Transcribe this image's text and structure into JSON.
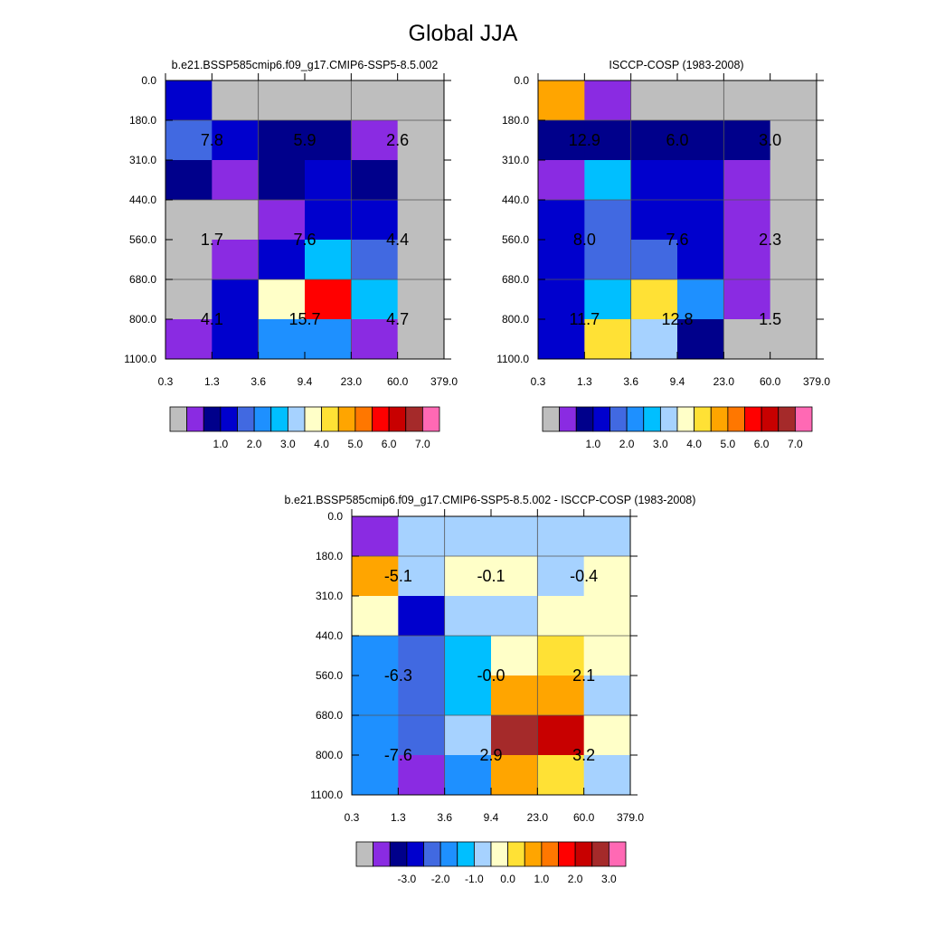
{
  "main_title": "Global JJA",
  "palettes": {
    "abs": [
      "#bebebe",
      "#8a2be2",
      "#00008b",
      "#0000cd",
      "#4169e1",
      "#1e90ff",
      "#00bfff",
      "#a6d2ff",
      "#ffffc8",
      "#ffe135",
      "#ffa500",
      "#ff7700",
      "#ff0000",
      "#c80000",
      "#a52a2a",
      "#ff69b4"
    ],
    "diff": [
      "#bebebe",
      "#8a2be2",
      "#00008b",
      "#0000cd",
      "#4169e1",
      "#1e90ff",
      "#00bfff",
      "#a6d2ff",
      "#ffffc8",
      "#ffe135",
      "#ffa500",
      "#ff7700",
      "#ff0000",
      "#c80000",
      "#a52a2a",
      "#ff69b4"
    ]
  },
  "chart_data": [
    {
      "type": "heatmap",
      "title": "b.e21.BSSP585cmip6.f09_g17.CMIP6-SSP5-8.5.002",
      "x_ticks": [
        "0.3",
        "1.3",
        "3.6",
        "9.4",
        "23.0",
        "60.0",
        "379.0"
      ],
      "y_ticks": [
        "0.0",
        "180.0",
        "310.0",
        "440.0",
        "560.0",
        "680.0",
        "800.0",
        "1100.0"
      ],
      "cell_colors": [
        [
          3,
          0,
          0,
          0,
          0,
          0
        ],
        [
          4,
          3,
          2,
          2,
          1,
          0
        ],
        [
          2,
          1,
          2,
          3,
          2,
          0
        ],
        [
          0,
          0,
          1,
          3,
          3,
          0
        ],
        [
          0,
          1,
          3,
          6,
          4,
          0
        ],
        [
          0,
          3,
          8,
          12,
          6,
          0
        ],
        [
          1,
          3,
          5,
          5,
          1,
          0
        ]
      ],
      "labels": [
        {
          "text": "7.8",
          "row": 1.5,
          "col": 1
        },
        {
          "text": "5.9",
          "row": 1.5,
          "col": 3
        },
        {
          "text": "2.6",
          "row": 1.5,
          "col": 5
        },
        {
          "text": "1.7",
          "row": 4,
          "col": 1
        },
        {
          "text": "7.6",
          "row": 4,
          "col": 3
        },
        {
          "text": "4.4",
          "row": 4,
          "col": 5
        },
        {
          "text": "4.1",
          "row": 6,
          "col": 1
        },
        {
          "text": "15.7",
          "row": 6,
          "col": 3
        },
        {
          "text": "4.7",
          "row": 6,
          "col": 5
        }
      ],
      "colorbar": {
        "palette": "abs",
        "labels": [
          "1.0",
          "2.0",
          "3.0",
          "4.0",
          "5.0",
          "6.0",
          "7.0"
        ]
      }
    },
    {
      "type": "heatmap",
      "title": "ISCCP-COSP (1983-2008)",
      "x_ticks": [
        "0.3",
        "1.3",
        "3.6",
        "9.4",
        "23.0",
        "60.0",
        "379.0"
      ],
      "y_ticks": [
        "0.0",
        "180.0",
        "310.0",
        "440.0",
        "560.0",
        "680.0",
        "800.0",
        "1100.0"
      ],
      "cell_colors": [
        [
          10,
          1,
          0,
          0,
          0,
          0
        ],
        [
          2,
          2,
          2,
          2,
          2,
          0
        ],
        [
          1,
          6,
          3,
          3,
          1,
          0
        ],
        [
          3,
          4,
          3,
          3,
          1,
          0
        ],
        [
          3,
          4,
          4,
          3,
          1,
          0
        ],
        [
          3,
          6,
          9,
          5,
          1,
          0
        ],
        [
          3,
          9,
          7,
          2,
          0,
          0
        ]
      ],
      "labels": [
        {
          "text": "12.9",
          "row": 1.5,
          "col": 1
        },
        {
          "text": "6.0",
          "row": 1.5,
          "col": 3
        },
        {
          "text": "3.0",
          "row": 1.5,
          "col": 5
        },
        {
          "text": "8.0",
          "row": 4,
          "col": 1
        },
        {
          "text": "7.6",
          "row": 4,
          "col": 3
        },
        {
          "text": "2.3",
          "row": 4,
          "col": 5
        },
        {
          "text": "11.7",
          "row": 6,
          "col": 1
        },
        {
          "text": "12.8",
          "row": 6,
          "col": 3
        },
        {
          "text": "1.5",
          "row": 6,
          "col": 5
        }
      ],
      "colorbar": {
        "palette": "abs",
        "labels": [
          "1.0",
          "2.0",
          "3.0",
          "4.0",
          "5.0",
          "6.0",
          "7.0"
        ]
      }
    },
    {
      "type": "heatmap",
      "title": "b.e21.BSSP585cmip6.f09_g17.CMIP6-SSP5-8.5.002 - ISCCP-COSP (1983-2008)",
      "x_ticks": [
        "0.3",
        "1.3",
        "3.6",
        "9.4",
        "23.0",
        "60.0",
        "379.0"
      ],
      "y_ticks": [
        "0.0",
        "180.0",
        "310.0",
        "440.0",
        "560.0",
        "680.0",
        "800.0",
        "1100.0"
      ],
      "cell_colors": [
        [
          1,
          7,
          7,
          7,
          7,
          7
        ],
        [
          10,
          7,
          8,
          8,
          7,
          8
        ],
        [
          8,
          3,
          7,
          7,
          8,
          8
        ],
        [
          5,
          4,
          6,
          8,
          9,
          8
        ],
        [
          5,
          4,
          6,
          10,
          10,
          7
        ],
        [
          5,
          4,
          7,
          14,
          13,
          8
        ],
        [
          5,
          1,
          5,
          10,
          9,
          7
        ]
      ],
      "labels": [
        {
          "text": "-5.1",
          "row": 1.5,
          "col": 1
        },
        {
          "text": "-0.1",
          "row": 1.5,
          "col": 3
        },
        {
          "text": "-0.4",
          "row": 1.5,
          "col": 5
        },
        {
          "text": "-6.3",
          "row": 4,
          "col": 1
        },
        {
          "text": "-0.0",
          "row": 4,
          "col": 3
        },
        {
          "text": "2.1",
          "row": 4,
          "col": 5
        },
        {
          "text": "-7.6",
          "row": 6,
          "col": 1
        },
        {
          "text": "2.9",
          "row": 6,
          "col": 3
        },
        {
          "text": "3.2",
          "row": 6,
          "col": 5
        }
      ],
      "colorbar": {
        "palette": "diff",
        "labels": [
          "-3.0",
          "-2.0",
          "-1.0",
          "0.0",
          "1.0",
          "2.0",
          "3.0"
        ]
      }
    }
  ]
}
